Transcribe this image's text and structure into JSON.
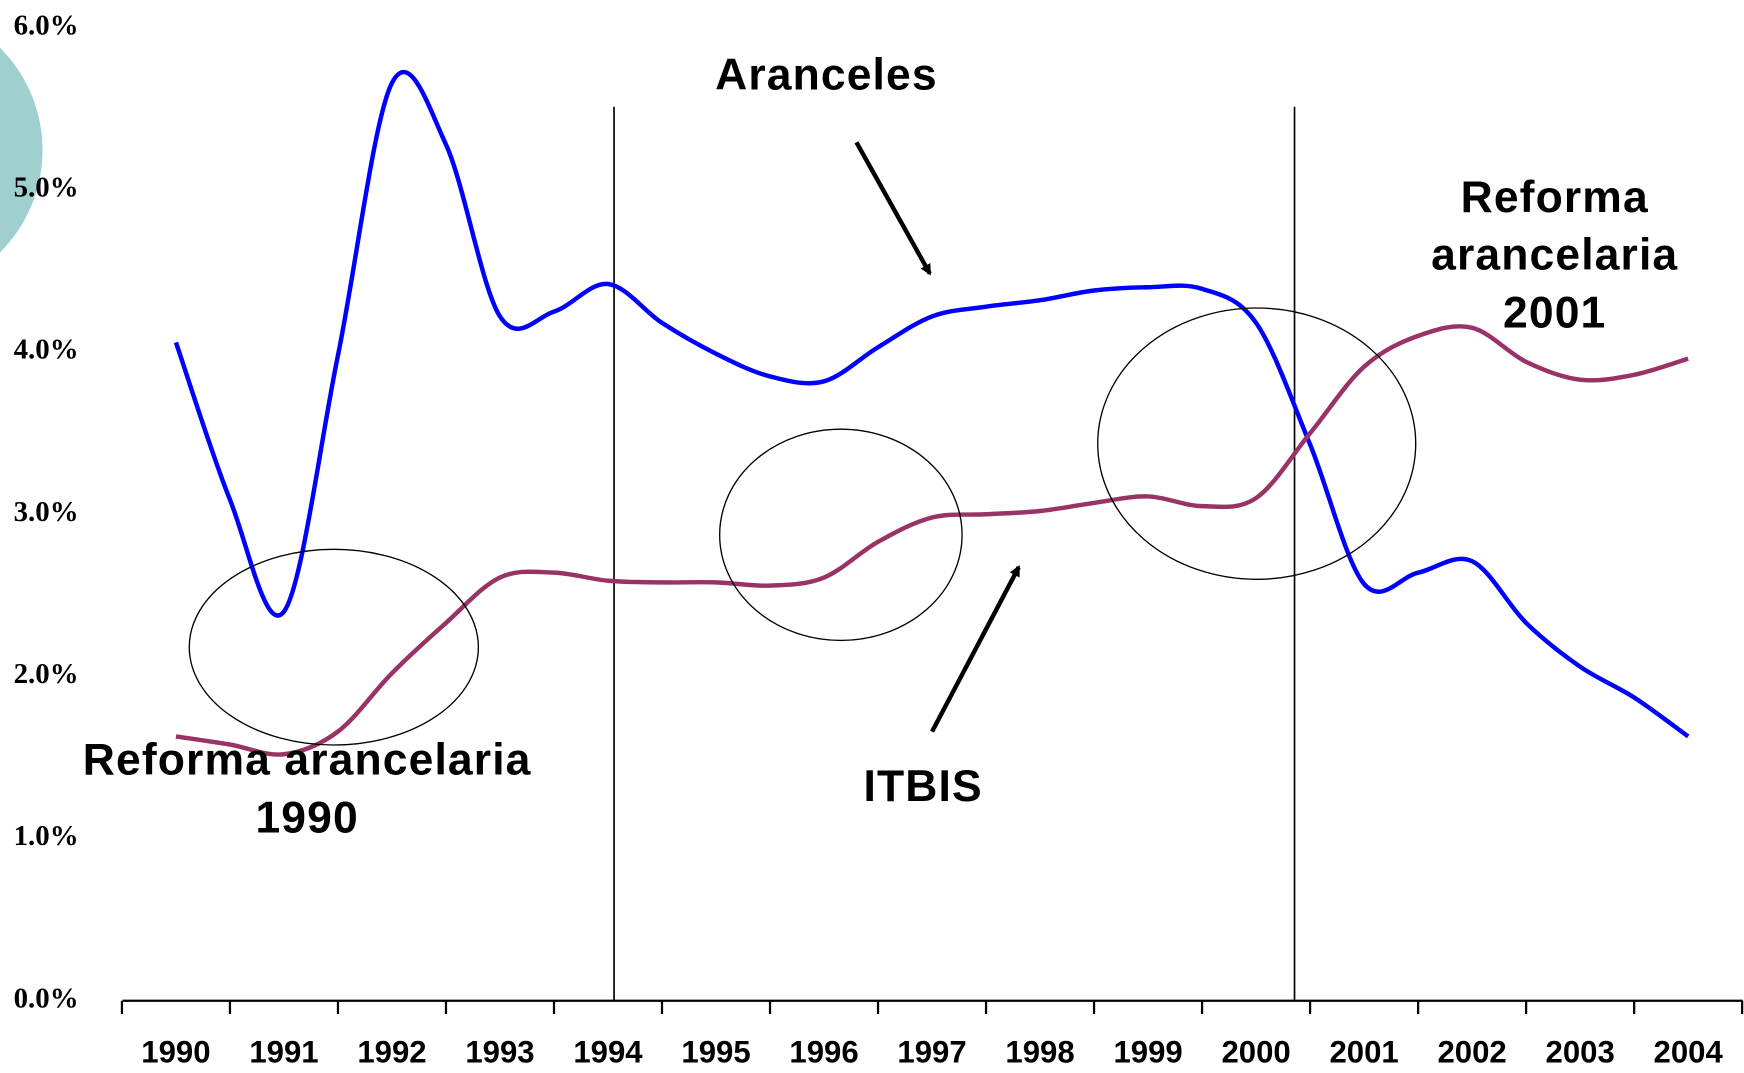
{
  "chart_data": {
    "type": "line",
    "categories": [
      "1990",
      null,
      "1991",
      null,
      "1992",
      null,
      "1993",
      null,
      "1994",
      null,
      "1995",
      null,
      "1996",
      null,
      "1997",
      null,
      "1998",
      null,
      "1999",
      null,
      "2000",
      null,
      "2001",
      null,
      "2002",
      null,
      "2003",
      null,
      "2004"
    ],
    "series": [
      {
        "name": "Aranceles",
        "color": "#0000ff",
        "values": [
          4.06,
          3.09,
          2.4,
          3.98,
          5.66,
          5.28,
          4.22,
          4.25,
          4.42,
          4.18,
          3.99,
          3.85,
          3.82,
          4.03,
          4.22,
          4.28,
          4.32,
          4.38,
          4.4,
          4.39,
          4.18,
          3.43,
          2.57,
          2.64,
          2.71,
          2.33,
          2.06,
          1.87,
          1.63
        ]
      },
      {
        "name": "ITBIS",
        "color": "#993366",
        "values": [
          1.63,
          1.58,
          1.52,
          1.66,
          2.02,
          2.33,
          2.61,
          2.64,
          2.59,
          2.58,
          2.58,
          2.56,
          2.61,
          2.83,
          2.98,
          3.0,
          3.02,
          3.07,
          3.11,
          3.05,
          3.1,
          3.5,
          3.91,
          4.1,
          4.15,
          3.94,
          3.83,
          3.86,
          3.96
        ]
      }
    ],
    "ylim": [
      0,
      6
    ],
    "yticks": [
      {
        "value": 0,
        "label": "0.0%"
      },
      {
        "value": 1,
        "label": "1.0%"
      },
      {
        "value": 2,
        "label": "2.0%"
      },
      {
        "value": 3,
        "label": "3.0%"
      },
      {
        "value": 4,
        "label": "4.0%"
      },
      {
        "value": 5,
        "label": "5.0%"
      },
      {
        "value": 6,
        "label": "6.0%"
      }
    ],
    "grid": false,
    "annotations": [
      {
        "lines": [
          "Reforma arancelaria",
          "1990"
        ]
      },
      {
        "lines": [
          "Reforma",
          "arancelaria",
          "2001"
        ]
      }
    ]
  }
}
